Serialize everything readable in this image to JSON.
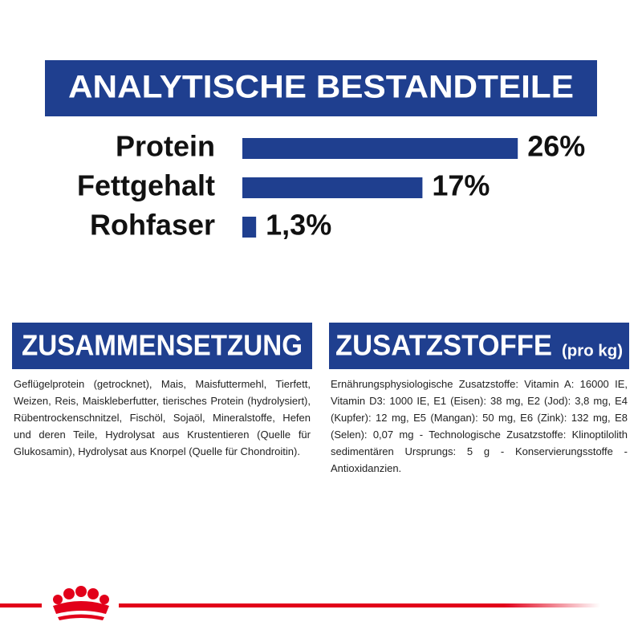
{
  "chart_data": {
    "type": "bar",
    "orientation": "horizontal",
    "title": "ANALYTISCHE BESTANDTEILE",
    "categories": [
      "Protein",
      "Fettgehalt",
      "Rohfaser"
    ],
    "values": [
      26,
      17,
      1.3
    ],
    "value_labels": [
      "26%",
      "17%",
      "1,3%"
    ],
    "color": "#1f3f8f"
  },
  "composition": {
    "title": "ZUSAMMENSETZUNG",
    "text": "Geflügelprotein (getrocknet), Mais, Maisfuttermehl, Tierfett, Weizen, Reis, Maiskleberfutter, tierisches Protein (hydrolysiert), Rübentrockenschnitzel, Fischöl, Sojaöl, Mineralstoffe, Hefen und deren Teile, Hydrolysat aus Krustentieren (Quelle für Glukosamin), Hydrolysat aus Knorpel (Quelle für Chondroitin)."
  },
  "additives": {
    "title": "ZUSATZSTOFFE",
    "unit": "(pro kg)",
    "text": "Ernährungsphysiologische Zusatzstoffe: Vitamin A: 16000 IE, Vitamin D3: 1000 IE, E1 (Eisen): 38 mg, E2 (Jod): 3,8 mg, E4 (Kupfer): 12 mg, E5 (Mangan): 50 mg, E6 (Zink): 132 mg, E8 (Selen): 0,07 mg - Technologische Zusatzstoffe: Klinoptilolith sedimentären Ursprungs: 5 g - Konservierungsstoffe - Antioxidanzien."
  }
}
